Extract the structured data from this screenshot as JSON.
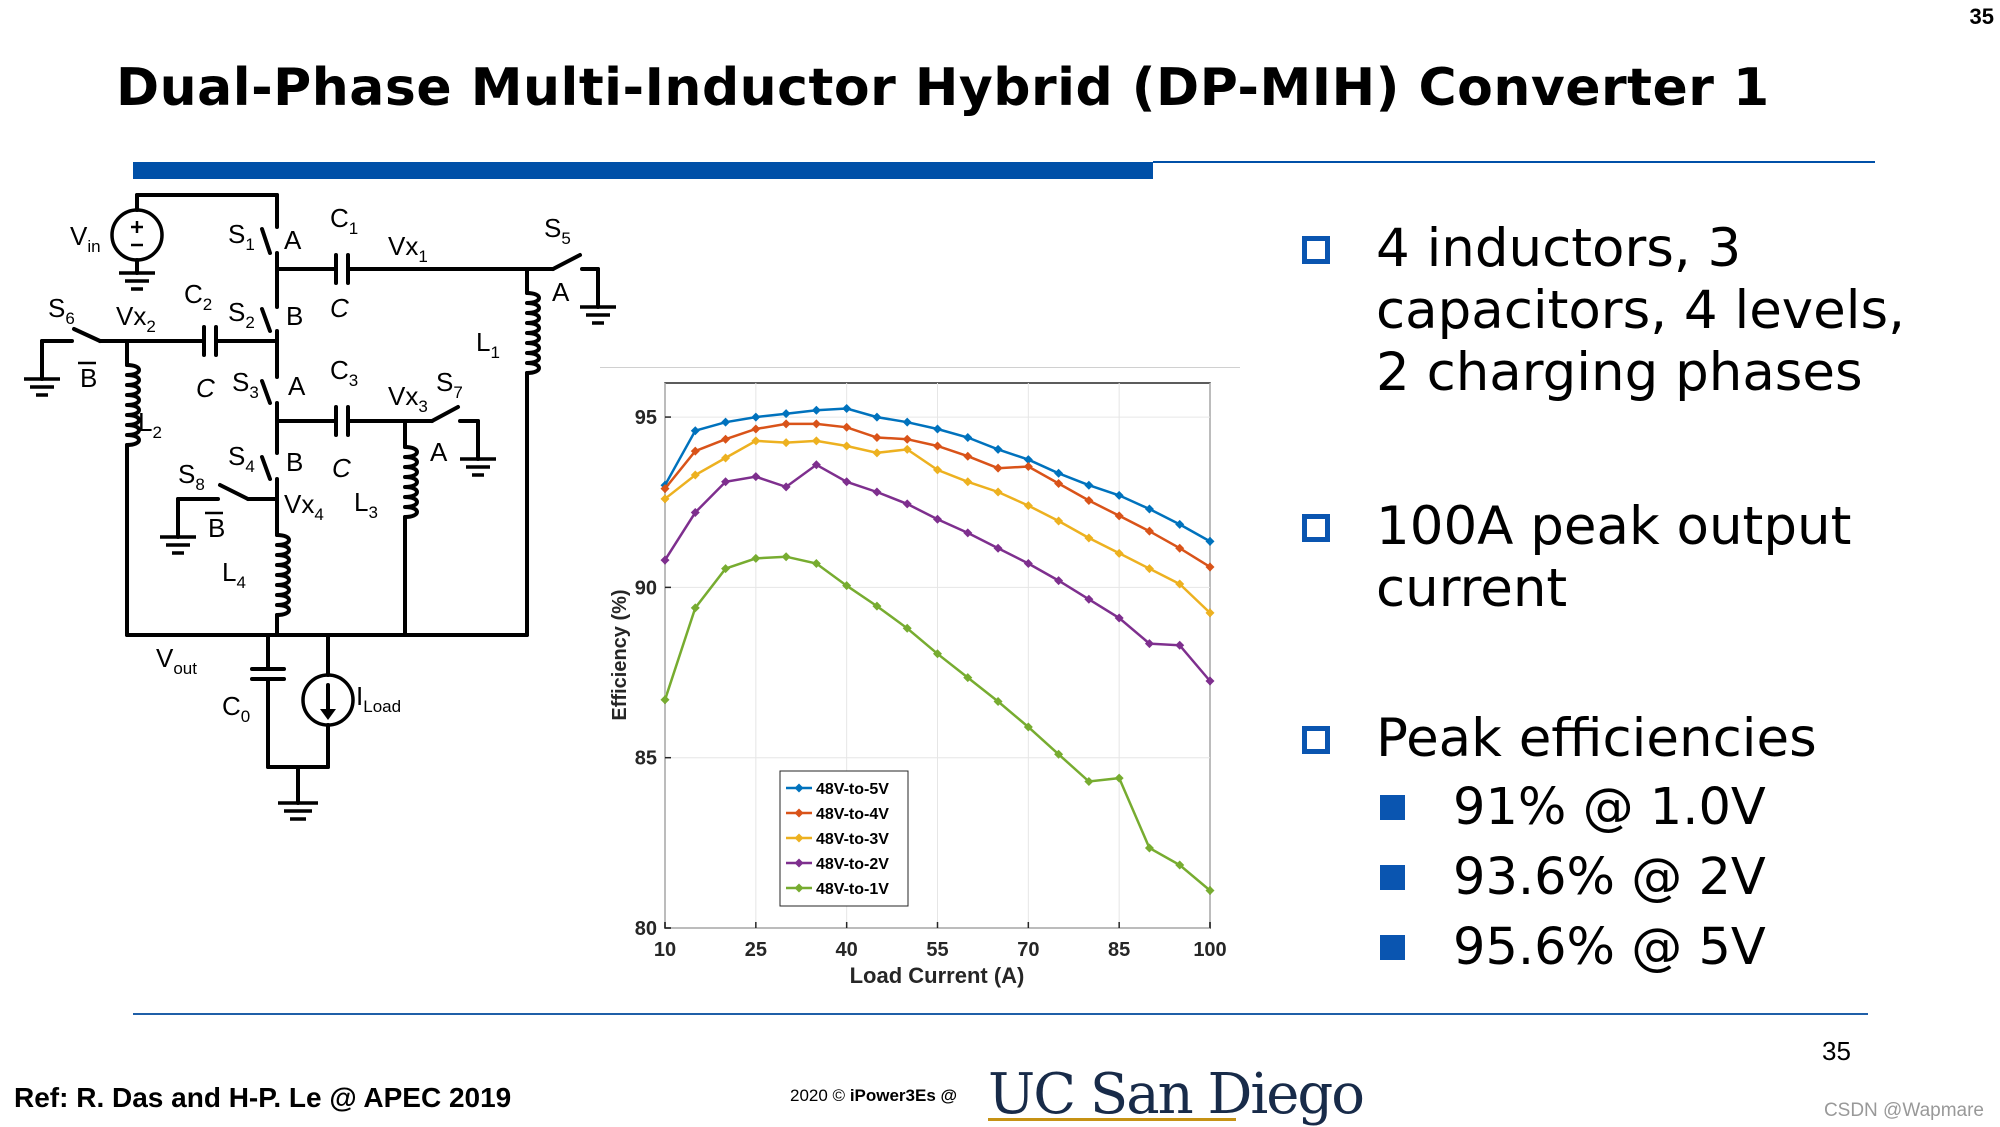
{
  "slide": {
    "corner_number": "35",
    "title": "Dual-Phase Multi-Inductor Hybrid (DP-MIH) Converter 1",
    "page_number": "35",
    "reference": "Ref: R. Das and H-P. Le @ APEC 2019",
    "copyright_year": "2020 ©",
    "copyright_org": "iPower3Es @",
    "logo_text": "UC San Diego",
    "watermark": "CSDN @Wapmare"
  },
  "bullets": [
    {
      "text": "4 inductors, 3\ncapacitors, 4 levels,\n2 charging phases"
    },
    {
      "text": "100A peak output\ncurrent"
    },
    {
      "text": "Peak efficiencies"
    }
  ],
  "sub_bullets": [
    "91% @ 1.0V",
    "93.6% @ 2V",
    "95.6% @ 5V"
  ],
  "circuit": {
    "labels": {
      "vin": "V",
      "vin_sub": "in",
      "s1": "S",
      "s1_sub": "1",
      "s2": "S",
      "s2_sub": "2",
      "s3": "S",
      "s3_sub": "3",
      "s4": "S",
      "s4_sub": "4",
      "s5": "S",
      "s5_sub": "5",
      "s6": "S",
      "s6_sub": "6",
      "s7": "S",
      "s7_sub": "7",
      "s8": "S",
      "s8_sub": "8",
      "c1": "C",
      "c1_sub": "1",
      "c2": "C",
      "c2_sub": "2",
      "c3": "C",
      "c3_sub": "3",
      "c0": "C",
      "c0_sub": "0",
      "vx1": "Vx",
      "vx1_sub": "1",
      "vx2": "Vx",
      "vx2_sub": "2",
      "vx3": "Vx",
      "vx3_sub": "3",
      "vx4": "Vx",
      "vx4_sub": "4",
      "l1": "L",
      "l1_sub": "1",
      "l2": "L",
      "l2_sub": "2",
      "l3": "L",
      "l3_sub": "3",
      "l4": "L",
      "l4_sub": "4",
      "vout": "V",
      "vout_sub": "out",
      "iload": "I",
      "iload_sub": "Load",
      "a": "A",
      "b": "B",
      "cval": "C"
    }
  },
  "chart_data": {
    "type": "line",
    "xlabel": "Load Current (A)",
    "ylabel": "Efficiency (%)",
    "xlim": [
      10,
      100
    ],
    "ylim": [
      80,
      96
    ],
    "xticks": [
      10,
      25,
      40,
      55,
      70,
      85,
      100
    ],
    "yticks": [
      80,
      85,
      90,
      95
    ],
    "legend_position": "bottom-left",
    "x": [
      10,
      15,
      20,
      25,
      30,
      35,
      40,
      45,
      50,
      55,
      60,
      65,
      70,
      75,
      80,
      85,
      90,
      95,
      100
    ],
    "series": [
      {
        "name": "48V-to-5V",
        "color": "#0072bd",
        "values": [
          93.0,
          94.6,
          94.85,
          95.0,
          95.1,
          95.2,
          95.25,
          95.0,
          94.85,
          94.65,
          94.4,
          94.05,
          93.75,
          93.35,
          93.0,
          92.7,
          92.3,
          91.85,
          91.35
        ]
      },
      {
        "name": "48V-to-4V",
        "color": "#d95319",
        "values": [
          92.9,
          94.0,
          94.35,
          94.65,
          94.8,
          94.8,
          94.7,
          94.4,
          94.35,
          94.15,
          93.85,
          93.5,
          93.55,
          93.05,
          92.55,
          92.1,
          91.65,
          91.15,
          90.6
        ]
      },
      {
        "name": "48V-to-3V",
        "color": "#edb120",
        "values": [
          92.6,
          93.3,
          93.8,
          94.3,
          94.25,
          94.3,
          94.15,
          93.95,
          94.05,
          93.45,
          93.1,
          92.8,
          92.4,
          91.95,
          91.45,
          91.0,
          90.55,
          90.1,
          89.25
        ]
      },
      {
        "name": "48V-to-2V",
        "color": "#7e2f8e",
        "values": [
          90.8,
          92.2,
          93.1,
          93.25,
          92.95,
          93.6,
          93.1,
          92.8,
          92.45,
          92.0,
          91.6,
          91.15,
          90.7,
          90.2,
          89.65,
          89.1,
          88.35,
          88.3,
          87.25
        ]
      },
      {
        "name": "48V-to-1V",
        "color": "#77ac30",
        "values": [
          86.7,
          89.4,
          90.55,
          90.85,
          90.9,
          90.7,
          90.05,
          89.45,
          88.8,
          88.05,
          87.35,
          86.65,
          85.9,
          85.1,
          84.3,
          84.4,
          82.35,
          81.85,
          81.1
        ]
      }
    ]
  }
}
